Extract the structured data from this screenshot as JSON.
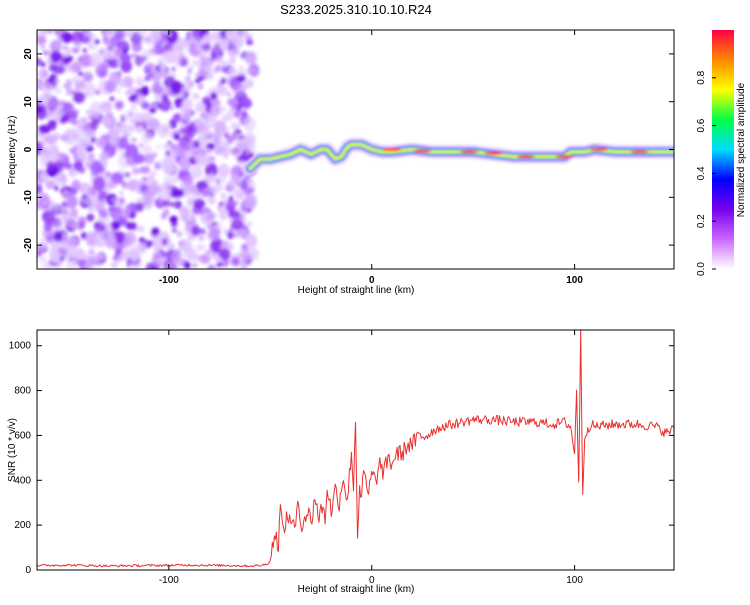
{
  "title": "S233.2025.310.10.10.R24",
  "chart_data": [
    {
      "type": "heatmap",
      "xlabel": "Height of straight line (km)",
      "ylabel": "Frequency (Hz)",
      "xlim": [
        -165,
        149
      ],
      "ylim": [
        -25,
        25
      ],
      "xticks": [
        -100,
        0,
        100
      ],
      "yticks": [
        -20,
        -10,
        0,
        10,
        20
      ],
      "noise_region": [
        -165,
        -60
      ],
      "signal_track": {
        "x": [
          -60,
          -55,
          -50,
          -45,
          -40,
          -35,
          -30,
          -25,
          -22,
          -18,
          -15,
          -12,
          -10,
          -5,
          0,
          5,
          10,
          20,
          30,
          40,
          50,
          60,
          70,
          80,
          90,
          95,
          98,
          100,
          105,
          110,
          120,
          130,
          140,
          149
        ],
        "y": [
          -4,
          -2,
          -2,
          -1.5,
          -1,
          0,
          -1,
          0,
          0,
          -2,
          -1.5,
          0.5,
          1,
          1,
          0,
          -0.5,
          -0.5,
          0,
          -0.5,
          -0.5,
          -0.5,
          -1,
          -1.5,
          -1.5,
          -1.5,
          -1.5,
          -0.5,
          -0.5,
          -0.5,
          0,
          -0.5,
          -0.5,
          -0.5,
          -0.5
        ]
      },
      "colorbar": {
        "label": "Normalized spectral amplitude",
        "range": [
          0,
          1
        ],
        "ticks": [
          "0.0",
          "0.2",
          "0.4",
          "0.6",
          "0.8"
        ],
        "colors": [
          "#ffffff",
          "#cc66ff",
          "#7700ee",
          "#0000ff",
          "#00ddff",
          "#00ff44",
          "#ffff00",
          "#ff8800",
          "#ff0044"
        ]
      }
    },
    {
      "type": "line",
      "xlabel": "Height of straight line (km)",
      "ylabel": "SNR (10 * v/v)",
      "xlim": [
        -165,
        149
      ],
      "ylim": [
        0,
        1070
      ],
      "xticks": [
        -100,
        0,
        100
      ],
      "yticks": [
        0,
        200,
        400,
        600,
        800,
        1000
      ],
      "color": "#e83030",
      "series": [
        {
          "name": "SNR",
          "x": [
            -165,
            -150,
            -130,
            -110,
            -90,
            -70,
            -60,
            -55,
            -52,
            -50,
            -48,
            -46,
            -45,
            -44,
            -42,
            -40,
            -38,
            -36,
            -35,
            -33,
            -31,
            -30,
            -28,
            -26,
            -24,
            -23,
            -22,
            -20,
            -18,
            -16,
            -14,
            -12,
            -10,
            -9,
            -8,
            -7,
            -6,
            -5,
            -4,
            -2,
            0,
            2,
            4,
            6,
            8,
            10,
            12,
            15,
            18,
            20,
            23,
            26,
            30,
            35,
            40,
            50,
            60,
            70,
            80,
            90,
            95,
            98,
            100,
            101,
            102,
            103,
            104,
            105,
            106,
            108,
            110,
            120,
            130,
            140,
            145,
            149
          ],
          "y": [
            20,
            22,
            18,
            20,
            22,
            20,
            18,
            20,
            25,
            40,
            160,
            120,
            280,
            180,
            220,
            240,
            180,
            300,
            200,
            240,
            260,
            200,
            330,
            230,
            300,
            200,
            380,
            260,
            360,
            300,
            420,
            300,
            540,
            360,
            680,
            150,
            380,
            300,
            450,
            330,
            420,
            400,
            470,
            430,
            500,
            470,
            520,
            520,
            560,
            560,
            590,
            600,
            620,
            640,
            650,
            670,
            670,
            660,
            660,
            650,
            660,
            640,
            520,
            800,
            400,
            1070,
            320,
            600,
            620,
            650,
            640,
            650,
            650,
            640,
            610,
            630
          ]
        }
      ]
    }
  ]
}
